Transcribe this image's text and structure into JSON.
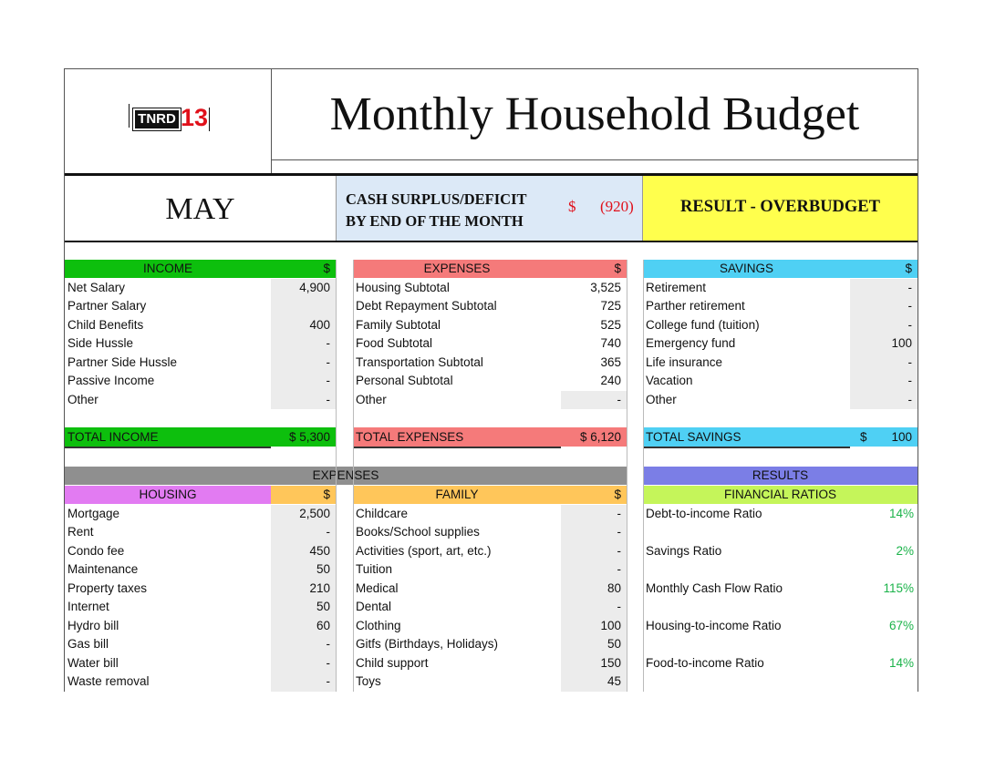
{
  "header": {
    "logo_text": "TNRD",
    "logo_number": "13",
    "title": "Monthly Household Budget"
  },
  "summary": {
    "month": "MAY",
    "cash_label_line1": "CASH SURPLUS/DEFICIT",
    "cash_label_line2": "BY END OF THE MONTH",
    "cash_symbol": "$",
    "cash_value": "(920)",
    "result": "RESULT - OVERBUDGET"
  },
  "colors": {
    "income": "#0dbf0d",
    "expenses": "#f57a7a",
    "savings": "#4fd0f4",
    "section_expenses": "#8f8f8f",
    "results": "#7b7ee6",
    "housing": "#e27bf2",
    "family": "#ffc65a",
    "ratios": "#c5f55a",
    "ratio_text": "#1bb34a",
    "deficit_red": "#e0101a",
    "result_yellow": "#ffff4d"
  },
  "income": {
    "header": "INCOME",
    "currency": "$",
    "rows": [
      {
        "name": "Net Salary",
        "value": "4,900"
      },
      {
        "name": "Partner Salary",
        "value": ""
      },
      {
        "name": "Child Benefits",
        "value": "400"
      },
      {
        "name": "Side Hussle",
        "value": "-"
      },
      {
        "name": "Partner Side Hussle",
        "value": "-"
      },
      {
        "name": "Passive Income",
        "value": "-"
      },
      {
        "name": "Other",
        "value": "-"
      }
    ],
    "total_label": "TOTAL INCOME",
    "total_value": "$ 5,300"
  },
  "expenses": {
    "header": "EXPENSES",
    "currency": "$",
    "rows": [
      {
        "name": "Housing Subtotal",
        "value": "3,525"
      },
      {
        "name": "Debt Repayment Subtotal",
        "value": "725"
      },
      {
        "name": "Family Subtotal",
        "value": "525"
      },
      {
        "name": "Food Subtotal",
        "value": "740"
      },
      {
        "name": "Transportation Subtotal",
        "value": "365"
      },
      {
        "name": "Personal Subtotal",
        "value": "240"
      },
      {
        "name": "Other",
        "value": "-"
      }
    ],
    "total_label": "TOTAL EXPENSES",
    "total_value": "$ 6,120"
  },
  "savings": {
    "header": "SAVINGS",
    "currency": "$",
    "rows": [
      {
        "name": "Retirement",
        "value": "-"
      },
      {
        "name": "Parther retirement",
        "value": "-"
      },
      {
        "name": "College fund (tuition)",
        "value": "-"
      },
      {
        "name": "Emergency fund",
        "value": "100"
      },
      {
        "name": "Life insurance",
        "value": "-"
      },
      {
        "name": "Vacation",
        "value": "-"
      },
      {
        "name": "Other",
        "value": "-"
      }
    ],
    "total_label": "TOTAL SAVINGS",
    "total_symbol": "$",
    "total_value": "100"
  },
  "section_expenses": "EXPENSES",
  "section_results": "RESULTS",
  "housing": {
    "header": "HOUSING",
    "currency": "$",
    "rows": [
      {
        "name": "Mortgage",
        "value": "2,500"
      },
      {
        "name": "Rent",
        "value": "-"
      },
      {
        "name": "Condo fee",
        "value": "450"
      },
      {
        "name": "Maintenance",
        "value": "50"
      },
      {
        "name": "Property taxes",
        "value": "210"
      },
      {
        "name": "Internet",
        "value": "50"
      },
      {
        "name": "Hydro bill",
        "value": "60"
      },
      {
        "name": "Gas bill",
        "value": "-"
      },
      {
        "name": "Water bill",
        "value": "-"
      },
      {
        "name": "Waste removal",
        "value": "-"
      }
    ]
  },
  "family": {
    "header": "FAMILY",
    "currency": "$",
    "rows": [
      {
        "name": "Childcare",
        "value": "-"
      },
      {
        "name": "Books/School supplies",
        "value": "-"
      },
      {
        "name": "Activities (sport, art, etc.)",
        "value": "-"
      },
      {
        "name": "Tuition",
        "value": "-"
      },
      {
        "name": "Medical",
        "value": "80"
      },
      {
        "name": "Dental",
        "value": "-"
      },
      {
        "name": "Clothing",
        "value": "100"
      },
      {
        "name": "Gitfs (Birthdays, Holidays)",
        "value": "50"
      },
      {
        "name": "Child support",
        "value": "150"
      },
      {
        "name": "Toys",
        "value": "45"
      }
    ]
  },
  "ratios": {
    "header": "FINANCIAL RATIOS",
    "rows": [
      {
        "name": "Debt-to-income Ratio",
        "value": "14%"
      },
      {
        "name": "Savings Ratio",
        "value": "2%"
      },
      {
        "name": "Monthly Cash Flow Ratio",
        "value": "115%"
      },
      {
        "name": "Housing-to-income Ratio",
        "value": "67%"
      },
      {
        "name": "Food-to-income Ratio",
        "value": "14%"
      }
    ]
  }
}
